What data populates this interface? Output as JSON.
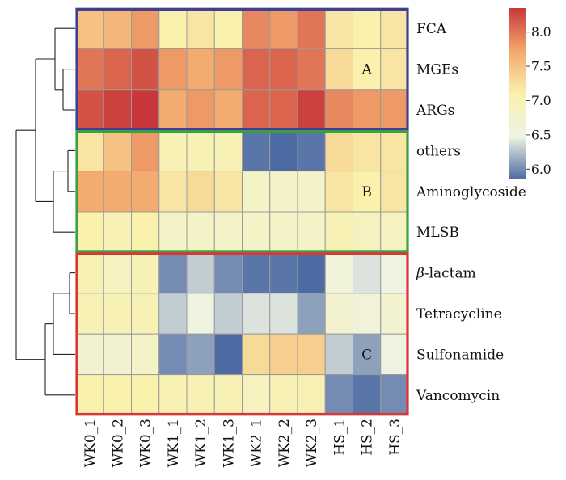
{
  "chart_data": {
    "type": "heatmap",
    "title": "",
    "xlabel": "",
    "ylabel": "",
    "columns": [
      "WK0_1",
      "WK0_2",
      "WK0_3",
      "WK1_1",
      "WK1_2",
      "WK1_3",
      "WK2_1",
      "WK2_2",
      "WK2_3",
      "HS_1",
      "HS_2",
      "HS_3"
    ],
    "rows": [
      {
        "label": "FCA",
        "values": [
          7.5,
          7.6,
          7.8,
          7.1,
          7.2,
          7.1,
          7.9,
          7.8,
          8.0,
          7.2,
          7.1,
          7.2
        ]
      },
      {
        "label": "MGEs",
        "values": [
          8.0,
          8.1,
          8.2,
          7.8,
          7.7,
          7.8,
          8.1,
          8.1,
          8.0,
          7.3,
          7.1,
          7.2
        ]
      },
      {
        "label": "ARGs",
        "values": [
          8.2,
          8.3,
          8.4,
          7.7,
          7.8,
          7.7,
          8.1,
          8.1,
          8.3,
          7.9,
          7.8,
          7.8
        ]
      },
      {
        "label": "others",
        "values": [
          7.2,
          7.5,
          7.8,
          7.0,
          7.0,
          7.0,
          5.9,
          5.7,
          5.9,
          7.3,
          7.2,
          7.2
        ]
      },
      {
        "label": "Aminoglycoside",
        "values": [
          7.7,
          7.7,
          7.7,
          7.2,
          7.3,
          7.2,
          6.8,
          6.8,
          6.8,
          7.2,
          7.1,
          7.2
        ]
      },
      {
        "label": "MLSB",
        "values": [
          7.1,
          7.0,
          7.1,
          6.8,
          6.8,
          6.8,
          6.8,
          6.8,
          6.8,
          7.0,
          6.9,
          6.9
        ]
      },
      {
        "label": "β-lactam",
        "values": [
          7.0,
          6.9,
          7.0,
          6.0,
          6.3,
          6.0,
          5.9,
          5.9,
          5.8,
          6.6,
          6.4,
          6.5
        ]
      },
      {
        "label": "Tetracycline",
        "values": [
          7.0,
          7.0,
          7.0,
          6.3,
          6.5,
          6.3,
          6.4,
          6.4,
          6.1,
          6.7,
          6.6,
          6.7
        ]
      },
      {
        "label": "Sulfonamide",
        "values": [
          6.7,
          6.7,
          6.8,
          6.0,
          6.1,
          5.8,
          7.3,
          7.4,
          7.4,
          6.3,
          6.1,
          6.5
        ]
      },
      {
        "label": "Vancomycin",
        "values": [
          7.1,
          7.1,
          7.1,
          7.0,
          7.0,
          7.0,
          6.9,
          7.0,
          7.0,
          6.0,
          5.9,
          6.0
        ]
      }
    ],
    "clusters": [
      {
        "label": "A",
        "rows": [
          0,
          1,
          2
        ],
        "color": "#3f3f96"
      },
      {
        "label": "B",
        "rows": [
          3,
          4,
          5
        ],
        "color": "#3aa143"
      },
      {
        "label": "C",
        "rows": [
          6,
          7,
          8,
          9
        ],
        "color": "#de3435"
      }
    ],
    "colorbar": {
      "min": 5.85,
      "max": 8.35,
      "ticks": [
        6.0,
        6.5,
        7.0,
        7.5,
        8.0
      ],
      "tick_labels": [
        "6.0",
        "6.5",
        "7.0",
        "7.5",
        "8.0"
      ],
      "colors": [
        "#4d6ba3",
        "#eef3e4",
        "#faf1ad",
        "#f3a86c",
        "#c9373a"
      ]
    }
  }
}
